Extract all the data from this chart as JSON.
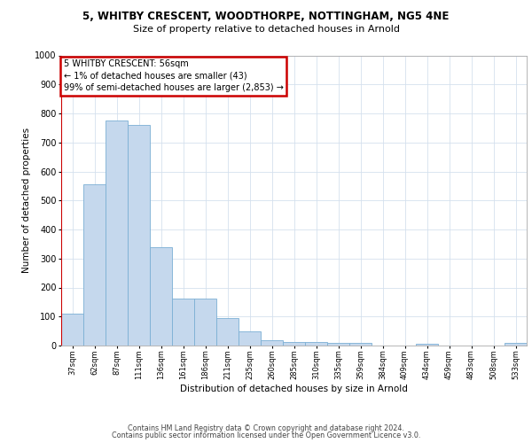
{
  "title1": "5, WHITBY CRESCENT, WOODTHORPE, NOTTINGHAM, NG5 4NE",
  "title2": "Size of property relative to detached houses in Arnold",
  "xlabel": "Distribution of detached houses by size in Arnold",
  "ylabel": "Number of detached properties",
  "categories": [
    "37sqm",
    "62sqm",
    "87sqm",
    "111sqm",
    "136sqm",
    "161sqm",
    "186sqm",
    "211sqm",
    "235sqm",
    "260sqm",
    "285sqm",
    "310sqm",
    "335sqm",
    "359sqm",
    "384sqm",
    "409sqm",
    "434sqm",
    "459sqm",
    "483sqm",
    "508sqm",
    "533sqm"
  ],
  "values": [
    110,
    555,
    775,
    760,
    340,
    163,
    163,
    95,
    50,
    18,
    13,
    11,
    10,
    10,
    0,
    0,
    7,
    0,
    0,
    0,
    10
  ],
  "bar_color": "#c5d8ed",
  "bar_edge_color": "#7bafd4",
  "annotation_line1": "5 WHITBY CRESCENT: 56sqm",
  "annotation_line2": "← 1% of detached houses are smaller (43)",
  "annotation_line3": "99% of semi-detached houses are larger (2,853) →",
  "annotation_box_color": "#ffffff",
  "annotation_box_edge_color": "#cc0000",
  "redline_x": -0.5,
  "ylim": [
    0,
    1000
  ],
  "yticks": [
    0,
    100,
    200,
    300,
    400,
    500,
    600,
    700,
    800,
    900,
    1000
  ],
  "footer1": "Contains HM Land Registry data © Crown copyright and database right 2024.",
  "footer2": "Contains public sector information licensed under the Open Government Licence v3.0.",
  "bg_color": "#ffffff",
  "grid_color": "#d5e0ee",
  "title1_fontsize": 8.5,
  "title2_fontsize": 8.0,
  "ylabel_fontsize": 7.5,
  "xlabel_fontsize": 7.5,
  "ytick_fontsize": 7.0,
  "xtick_fontsize": 6.0,
  "annot_fontsize": 7.0,
  "footer_fontsize": 5.8
}
